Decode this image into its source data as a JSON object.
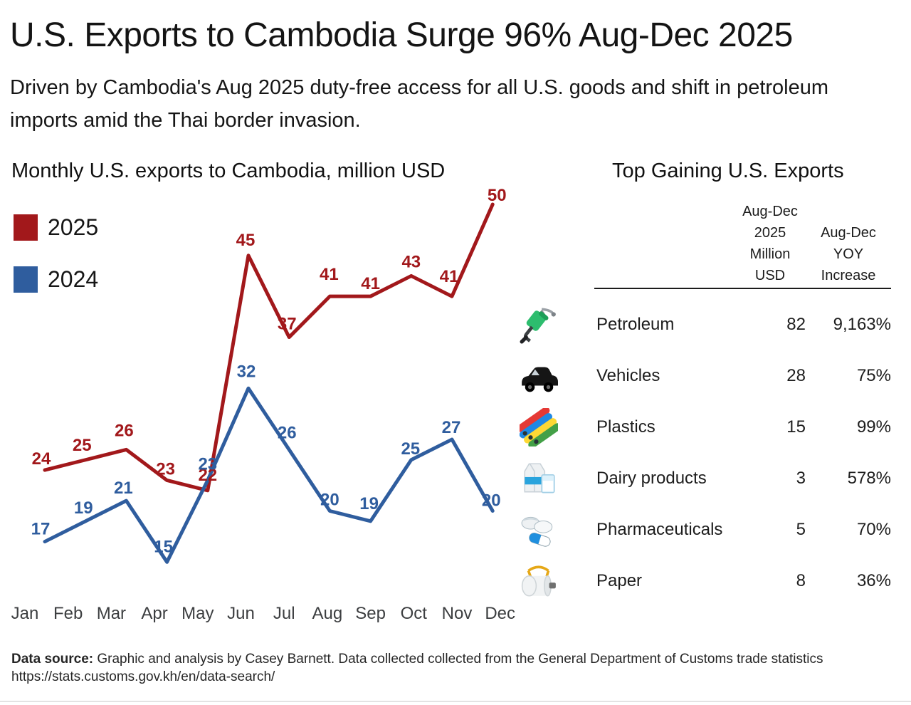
{
  "header": {
    "title": "U.S. Exports to Cambodia Surge 96% Aug-Dec 2025",
    "subtitle": "Driven by Cambodia's Aug 2025 duty-free access for all U.S. goods and shift in petroleum imports amid the Thai border invasion."
  },
  "chart_data": {
    "type": "line",
    "title": "Monthly U.S. exports to Cambodia, million USD",
    "categories": [
      "Jan",
      "Feb",
      "Mar",
      "Apr",
      "May",
      "Jun",
      "Jul",
      "Aug",
      "Sep",
      "Oct",
      "Nov",
      "Dec"
    ],
    "series": [
      {
        "name": "2025",
        "color": "#a2181b",
        "values": [
          24,
          25,
          26,
          23,
          22,
          45,
          37,
          41,
          41,
          43,
          41,
          50
        ]
      },
      {
        "name": "2024",
        "color": "#2f5d9e",
        "values": [
          17,
          19,
          21,
          15,
          23,
          32,
          26,
          20,
          19,
          25,
          27,
          20
        ]
      }
    ],
    "ylim": [
      13,
      52
    ],
    "grid": false,
    "data_labels": true,
    "legend_position": "left",
    "x_axis_label_color": "#3c3e40"
  },
  "table": {
    "title": "Top Gaining U.S. Exports",
    "col1_header": "Aug-Dec\n2025\nMillion\nUSD",
    "col2_header": "Aug-Dec\nYOY\nIncrease",
    "rows": [
      {
        "icon": "petroleum-icon",
        "label": "Petroleum",
        "value": "82",
        "yoy": "9,163%"
      },
      {
        "icon": "vehicle-icon",
        "label": "Vehicles",
        "value": "28",
        "yoy": "75%"
      },
      {
        "icon": "plastics-icon",
        "label": "Plastics",
        "value": "15",
        "yoy": "99%"
      },
      {
        "icon": "dairy-icon",
        "label": "Dairy products",
        "value": "3",
        "yoy": "578%"
      },
      {
        "icon": "pharmaceuticals-icon",
        "label": "Pharmaceuticals",
        "value": "5",
        "yoy": "70%"
      },
      {
        "icon": "paper-icon",
        "label": "Paper",
        "value": "8",
        "yoy": "36%"
      }
    ]
  },
  "footer": {
    "source_prefix": "Data source:",
    "source_text": " Graphic and analysis by Casey Barnett. Data collected collected from the General Department of Customs trade statistics",
    "source_url": "https://stats.customs.gov.kh/en/data-search/"
  }
}
